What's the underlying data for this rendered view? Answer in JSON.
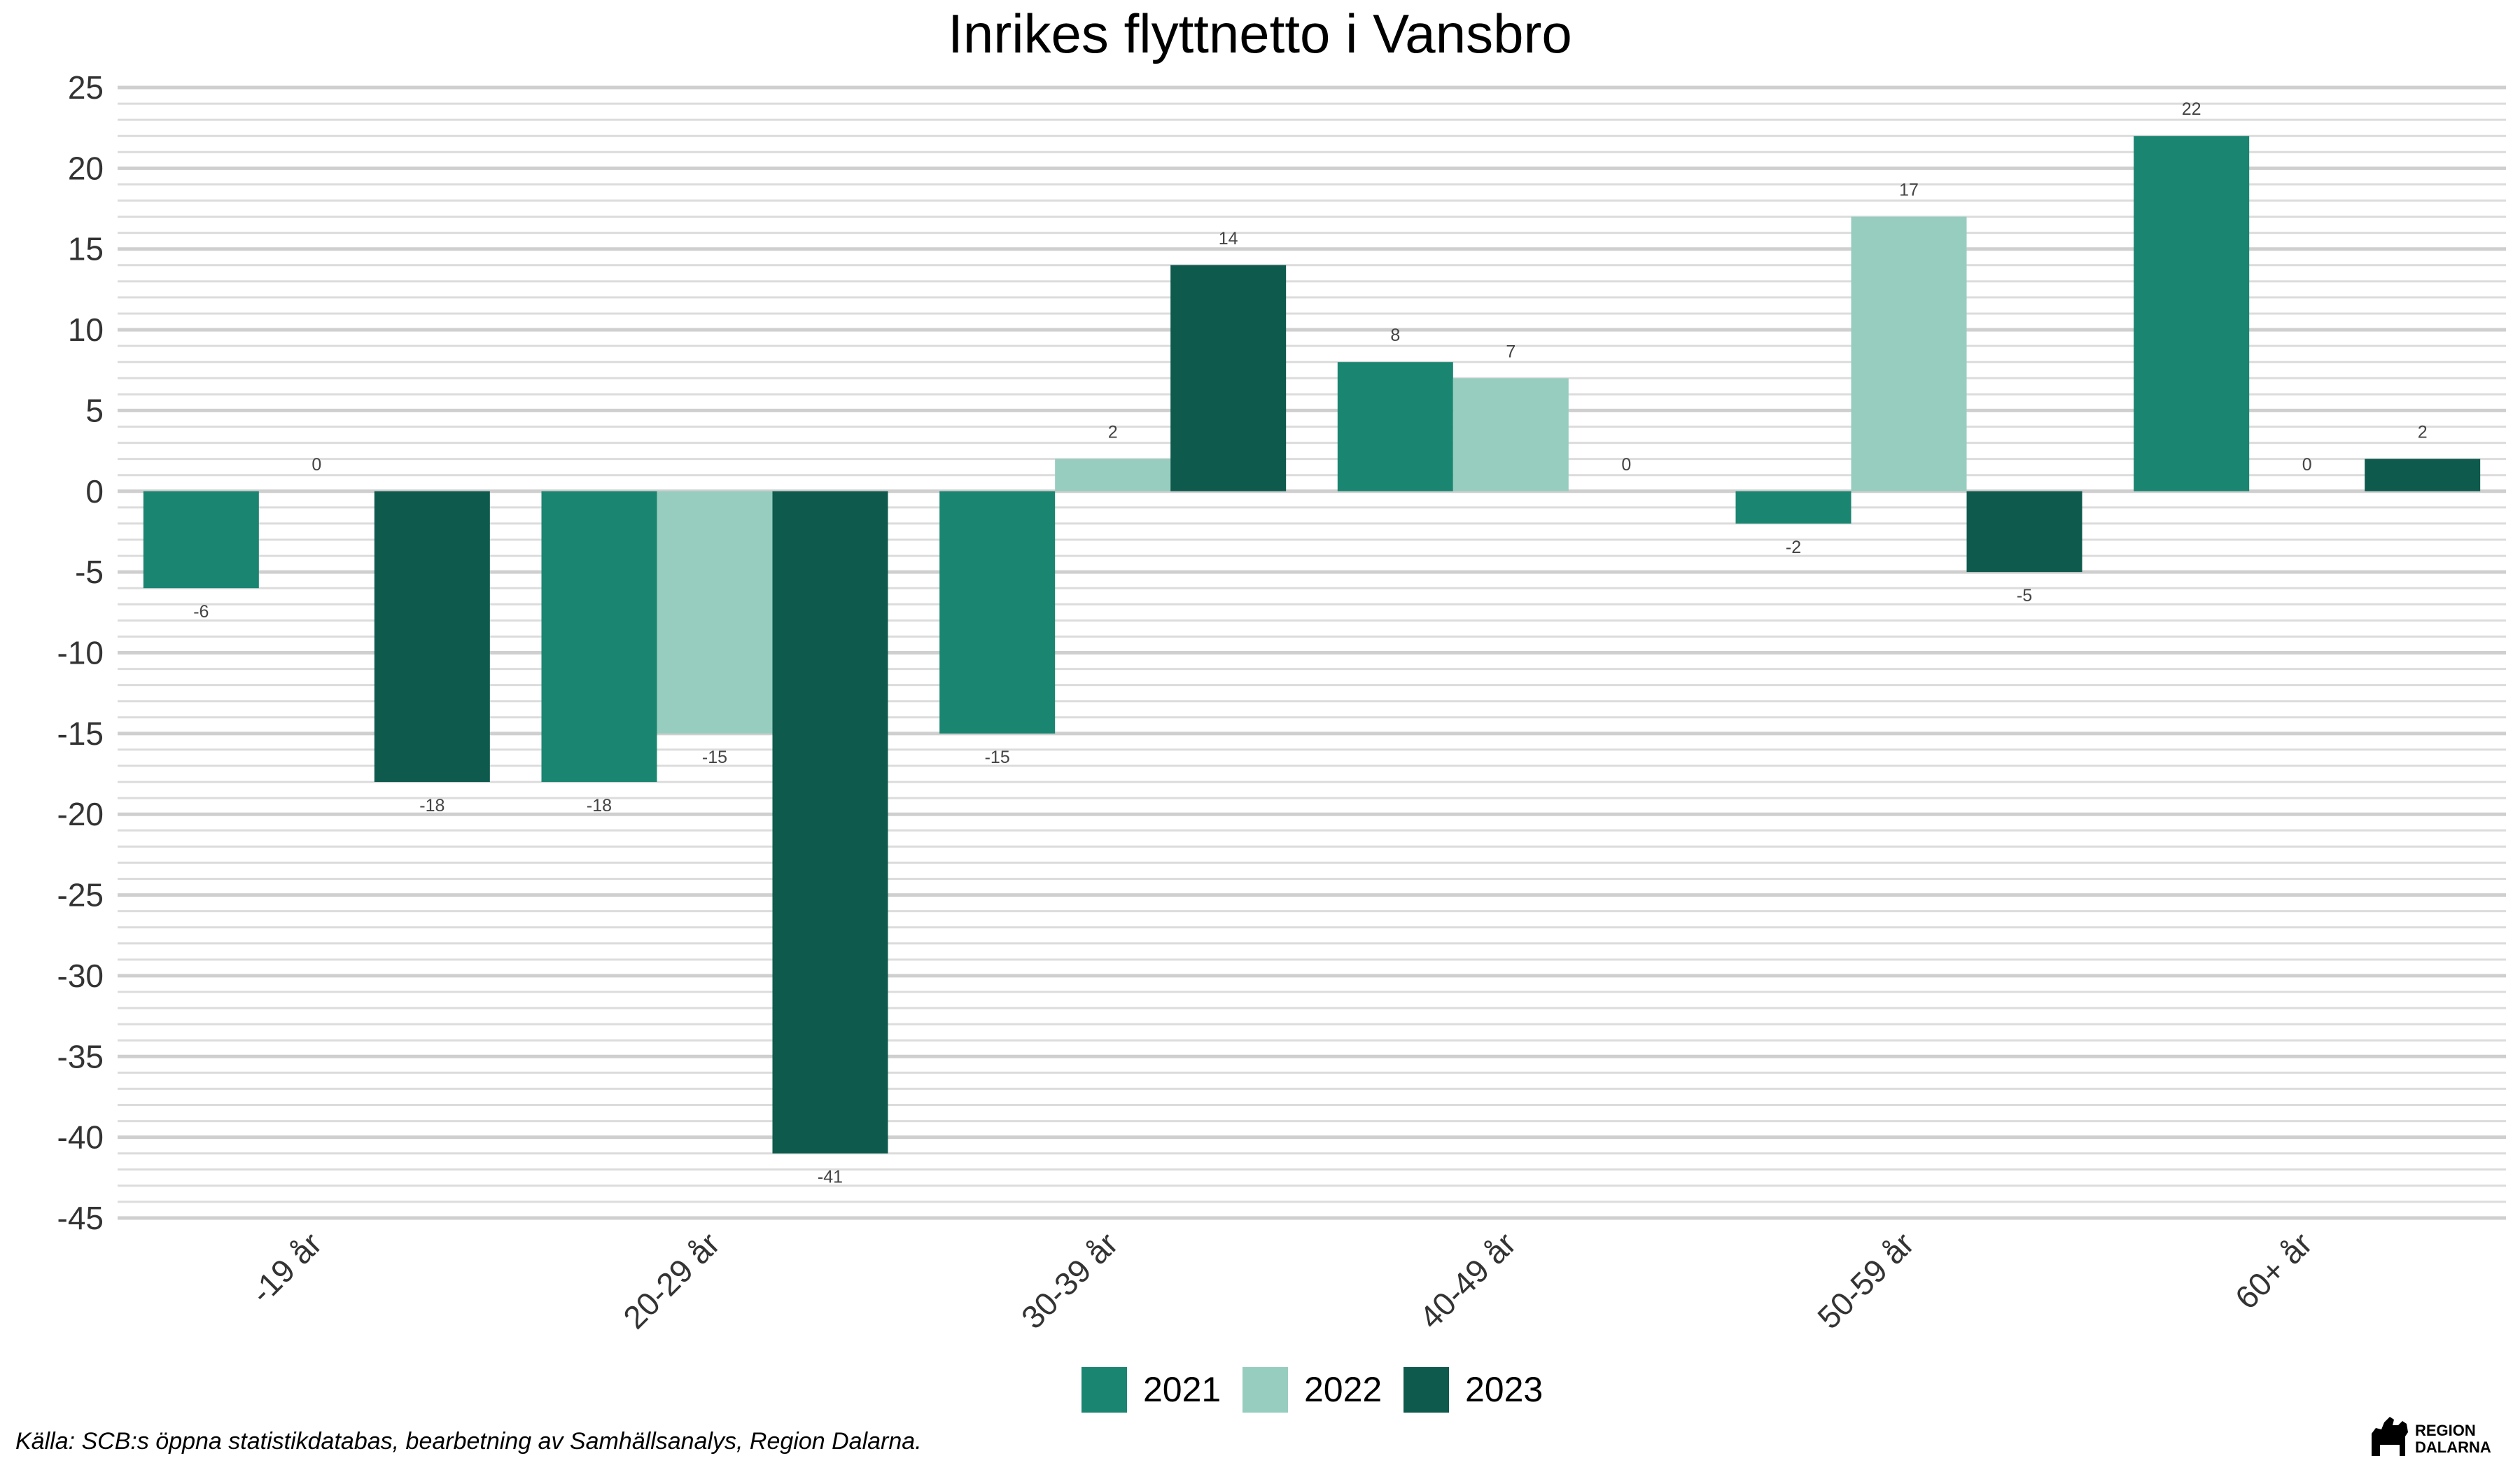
{
  "chart_data": {
    "type": "bar",
    "title": "Inrikes flyttnetto i Vansbro",
    "xlabel": "",
    "ylabel": "",
    "categories": [
      "-19 år",
      "20-29 år",
      "30-39 år",
      "40-49 år",
      "50-59 år",
      "60+ år"
    ],
    "series": [
      {
        "name": "2021",
        "color": "#1A8571",
        "values": [
          -6,
          -18,
          -15,
          8,
          -2,
          22
        ]
      },
      {
        "name": "2022",
        "color": "#96CDBF",
        "values": [
          0,
          -15,
          2,
          7,
          17,
          0
        ]
      },
      {
        "name": "2023",
        "color": "#0E5A4D",
        "values": [
          -18,
          -41,
          14,
          0,
          -5,
          2
        ]
      }
    ],
    "ylim": [
      -45,
      25
    ],
    "yticks": [
      25,
      20,
      15,
      10,
      5,
      0,
      -5,
      -10,
      -15,
      -20,
      -25,
      -30,
      -35,
      -40,
      -45
    ],
    "grid": true,
    "legend_position": "bottom",
    "data_labels": true
  },
  "caption": "Källa: SCB:s öppna statistikdatabas, bearbetning av Samhällsanalys, Region Dalarna.",
  "logo": {
    "line1": "REGION",
    "line2": "DALARNA"
  }
}
